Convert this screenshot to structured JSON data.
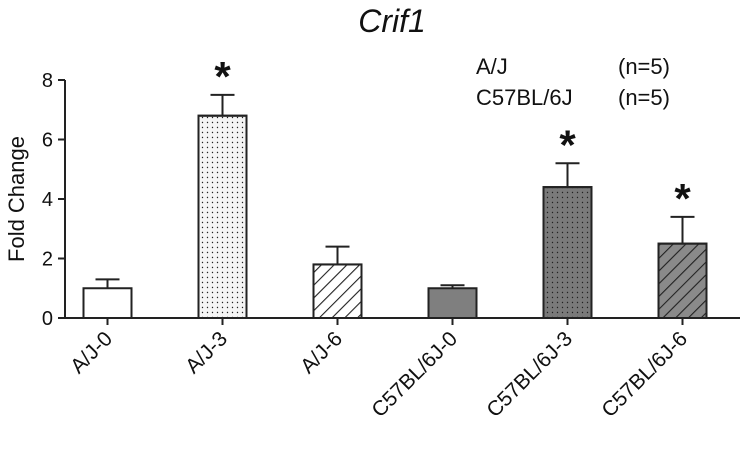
{
  "chart_data": {
    "type": "bar",
    "title": "Crif1",
    "y_label": "Fold Change",
    "categories": [
      "A/J-0",
      "A/J-3",
      "A/J-6",
      "C57BL/6J-0",
      "C57BL/6J-3",
      "C57BL/6J-6"
    ],
    "values": [
      1.0,
      6.8,
      1.8,
      1.0,
      4.4,
      2.5
    ],
    "errors": [
      0.3,
      0.7,
      0.6,
      0.1,
      0.8,
      0.9
    ],
    "colors": [
      "#ffffff",
      "#f4f4f4",
      "#ffffff",
      "#7f7f7f",
      "#7a7a7a",
      "#8a8a8a"
    ],
    "patterns": [
      "none",
      "dots",
      "hatch",
      "none",
      "dots",
      "hatch"
    ],
    "significant": [
      false,
      true,
      false,
      false,
      true,
      true
    ],
    "significance_label": "*",
    "legend": [
      {
        "name": "A/J",
        "n": "(n=5)"
      },
      {
        "name": "C57BL/6J",
        "n": "(n=5)"
      }
    ],
    "ylim": [
      0,
      8
    ],
    "yticks": [
      0,
      2,
      4,
      6,
      8
    ]
  }
}
